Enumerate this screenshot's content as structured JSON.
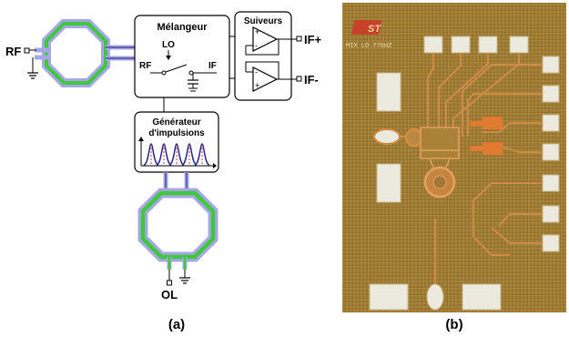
{
  "panel_a": {
    "caption": "(a)",
    "rf_label": "RF",
    "ol_label": "OL",
    "mixer": {
      "title": "Mélangeur",
      "lo": "LO",
      "rf": "RF",
      "if": "IF"
    },
    "followers": {
      "title": "Suiveurs",
      "out_pos": "IF+",
      "out_neg": "IF-"
    },
    "generator": {
      "title_line1": "Générateur",
      "title_line2": "d'impulsions"
    },
    "colors": {
      "coil_outer": "#a7a7e8",
      "coil_inner": "#3fc83a",
      "pulse": "#2a2a8a",
      "pulse_alt": "#c23a3a"
    }
  },
  "panel_b": {
    "caption": "(b)",
    "logo": "ST",
    "chip_text": "MIX LO 77GHZ",
    "colors": {
      "substrate": "#a8863a",
      "pad": "#e8e8e0",
      "trace": "#c8783a",
      "metal": "#e07a30"
    }
  }
}
